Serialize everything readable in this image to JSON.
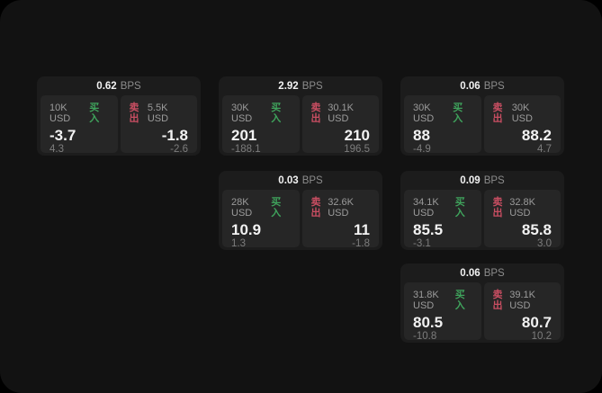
{
  "page": {
    "backdrop_color": "#000000",
    "surface_color": "#121212",
    "card_color": "#1c1c1c",
    "panel_color": "#262626"
  },
  "colors": {
    "buy_green": "#3fa35c",
    "sell_red": "#c94e62",
    "value_white": "#f2f2f2",
    "label_gray": "#9b9b9b",
    "sub_gray": "#7d7d7d"
  },
  "labels": {
    "bps": "BPS",
    "buy": "买入",
    "sell": "卖出"
  },
  "cards": [
    {
      "bps": "0.62",
      "buy": {
        "amount": "10K USD",
        "value": "-3.7",
        "sub": "4.3"
      },
      "sell": {
        "amount": "5.5K USD",
        "value": "-1.8",
        "sub": "-2.6"
      }
    },
    {
      "bps": "2.92",
      "buy": {
        "amount": "30K USD",
        "value": "201",
        "sub": "-188.1"
      },
      "sell": {
        "amount": "30.1K USD",
        "value": "210",
        "sub": "196.5"
      }
    },
    {
      "bps": "0.06",
      "buy": {
        "amount": "30K USD",
        "value": "88",
        "sub": "-4.9"
      },
      "sell": {
        "amount": "30K USD",
        "value": "88.2",
        "sub": "4.7"
      }
    },
    {
      "bps": "0.03",
      "buy": {
        "amount": "28K USD",
        "value": "10.9",
        "sub": "1.3"
      },
      "sell": {
        "amount": "32.6K USD",
        "value": "11",
        "sub": "-1.8"
      }
    },
    {
      "bps": "0.09",
      "buy": {
        "amount": "34.1K USD",
        "value": "85.5",
        "sub": "-3.1"
      },
      "sell": {
        "amount": "32.8K USD",
        "value": "85.8",
        "sub": "3.0"
      }
    },
    {
      "bps": "0.06",
      "buy": {
        "amount": "31.8K USD",
        "value": "80.5",
        "sub": "-10.8"
      },
      "sell": {
        "amount": "39.1K USD",
        "value": "80.7",
        "sub": "10.2"
      }
    }
  ]
}
